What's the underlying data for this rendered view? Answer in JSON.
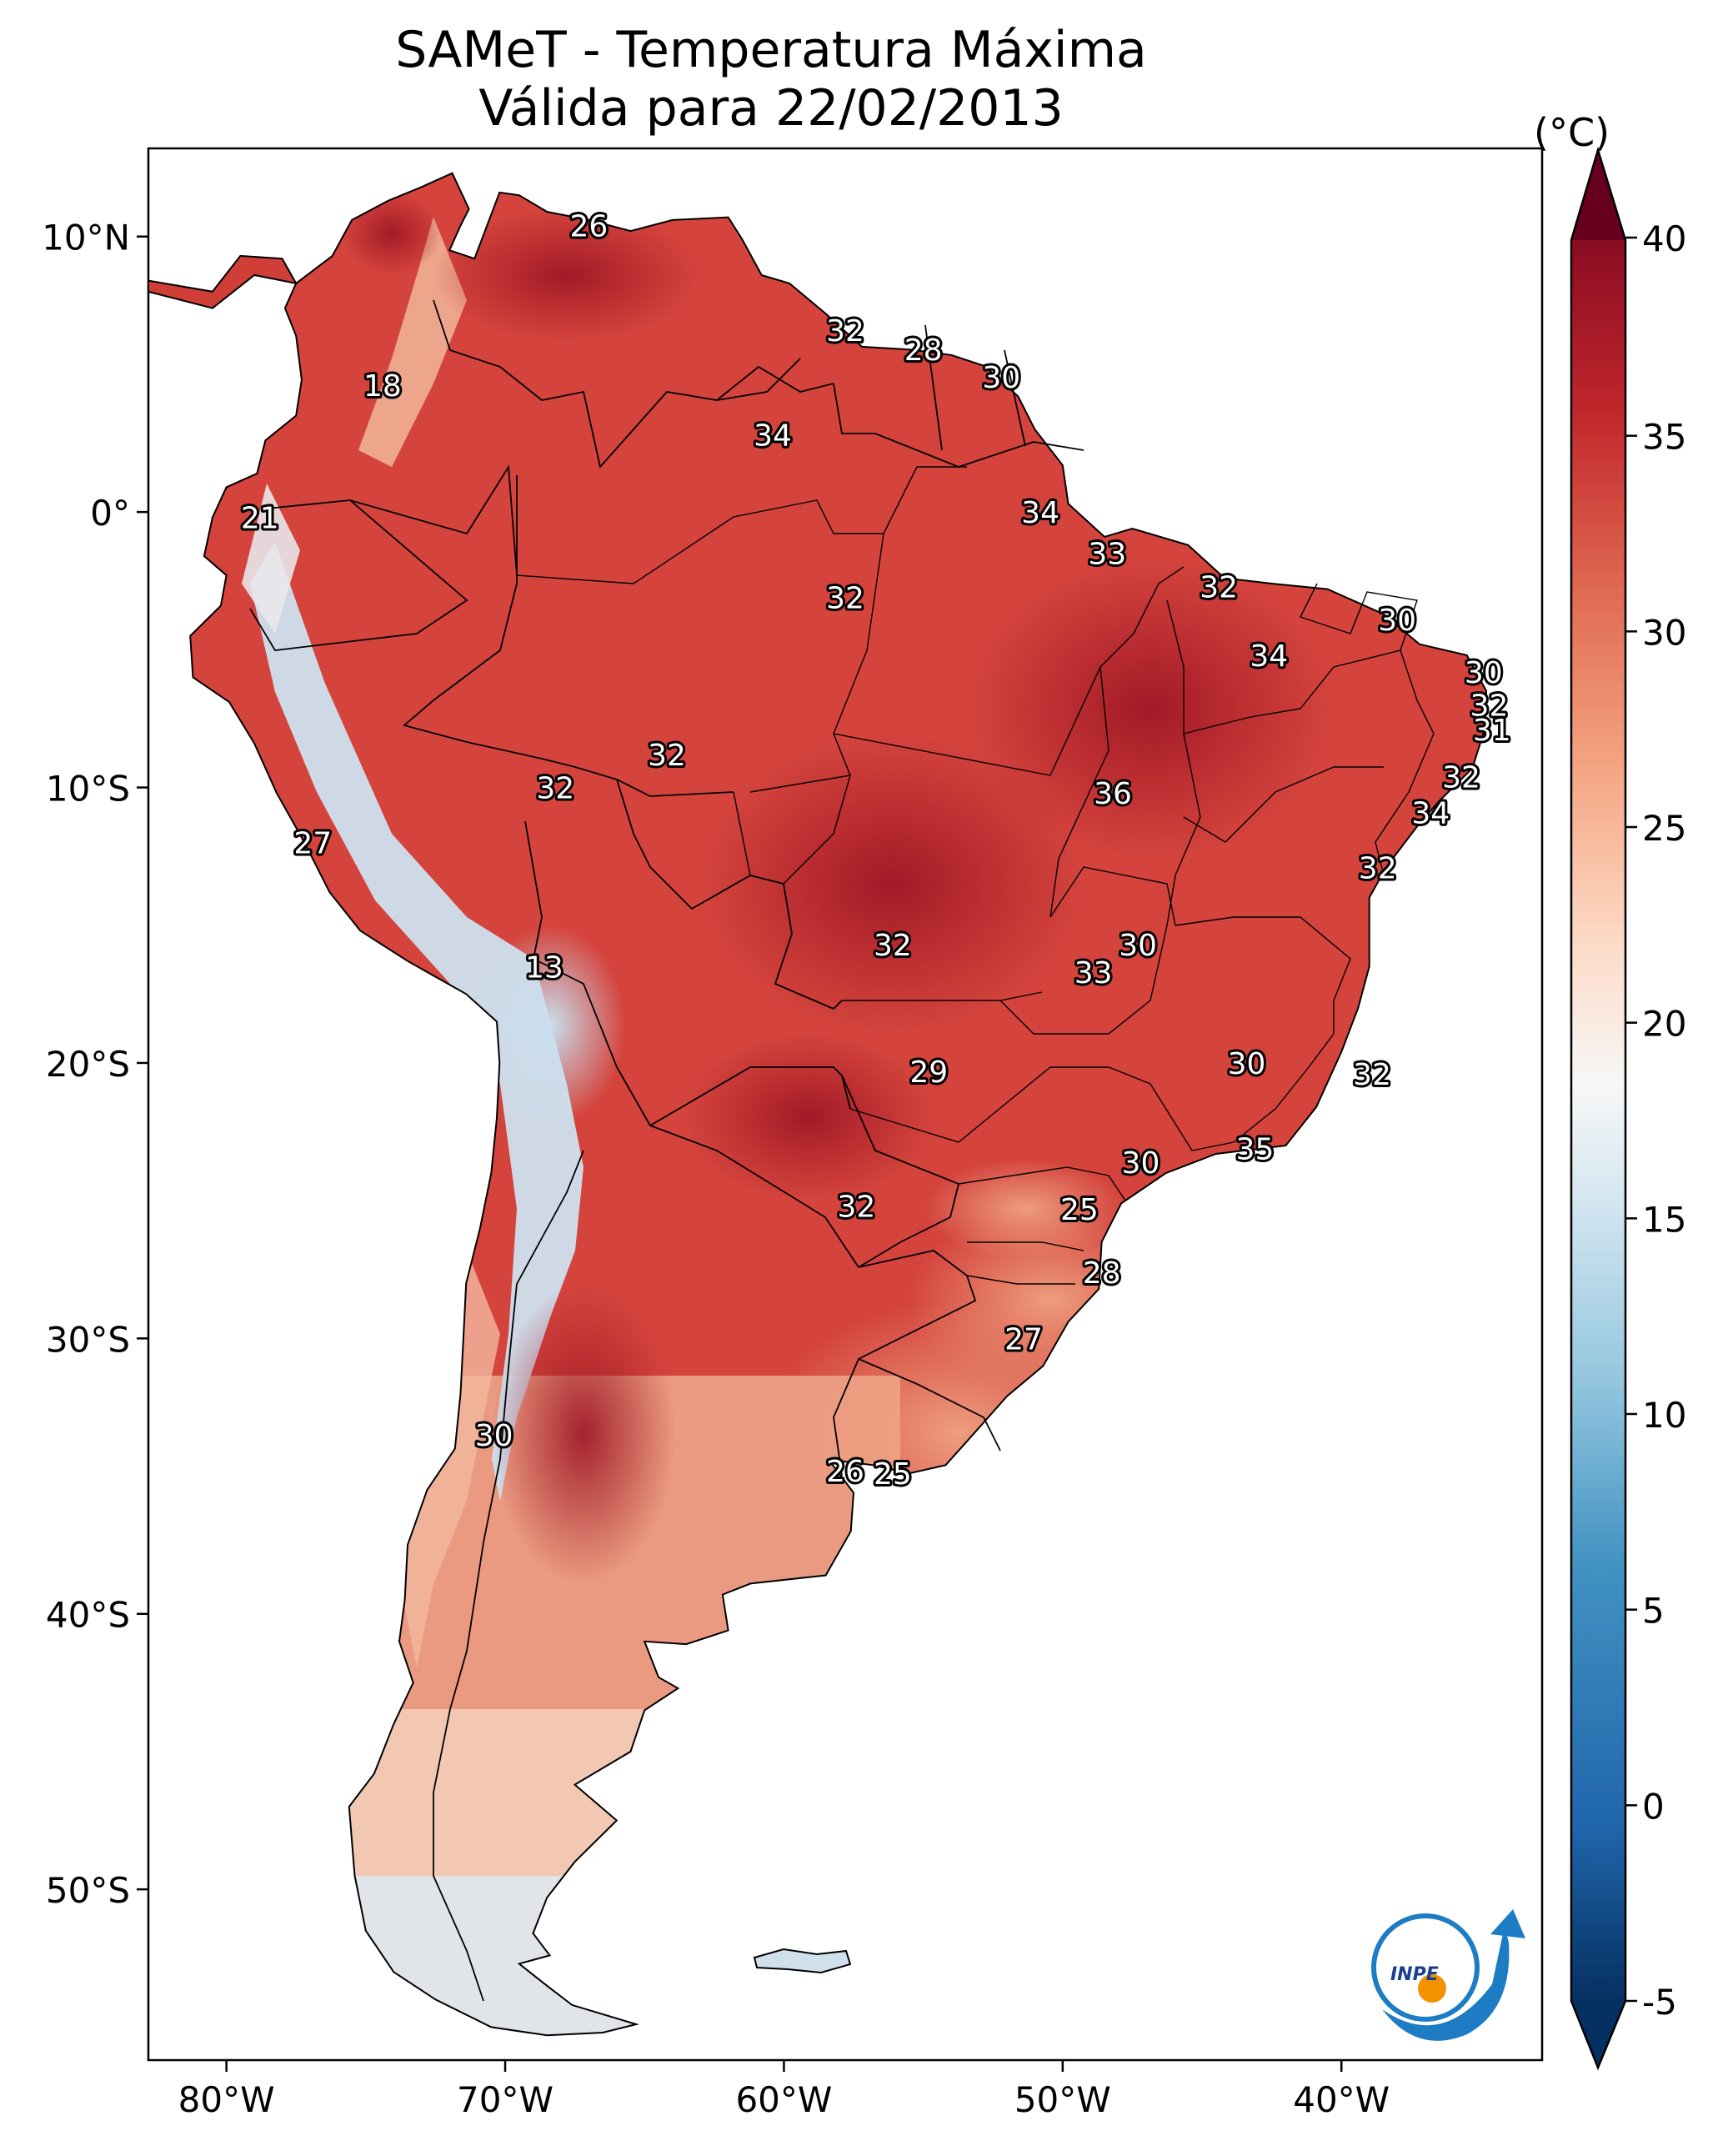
{
  "title_line1": "SAMeT - Temperatura Máxima",
  "title_line2": "Válida para 22/02/2013",
  "colorbar": {
    "unit_label": "(°C)",
    "ticks": [
      "40",
      "35",
      "30",
      "25",
      "20",
      "15",
      "10",
      "5",
      "0",
      "-5"
    ],
    "range": [
      -5,
      40
    ],
    "extend": "both",
    "colormap": "RdBu_r",
    "colors": {
      "min": "#053061",
      "low": "#2166ac",
      "midlow": "#92c5de",
      "mid": "#f7f7f7",
      "midhigh": "#f4a582",
      "high": "#d6604d",
      "max": "#67001f"
    }
  },
  "axes": {
    "lat_ticks": [
      "10°N",
      "0°",
      "10°S",
      "20°S",
      "30°S",
      "40°S",
      "50°S"
    ],
    "lon_ticks": [
      "80°W",
      "70°W",
      "60°W",
      "50°W",
      "40°W"
    ]
  },
  "map_extent": {
    "lon": [
      -82.8,
      -32.8
    ],
    "lat": [
      -56.2,
      13.2
    ]
  },
  "region": "South America",
  "point_labels": [
    {
      "text": "26",
      "lon": -67.0,
      "lat": 10.4
    },
    {
      "text": "32",
      "lon": -57.8,
      "lat": 6.6
    },
    {
      "text": "28",
      "lon": -55.0,
      "lat": 5.9
    },
    {
      "text": "30",
      "lon": -52.2,
      "lat": 4.9
    },
    {
      "text": "18",
      "lon": -74.4,
      "lat": 4.6
    },
    {
      "text": "34",
      "lon": -60.4,
      "lat": 2.8
    },
    {
      "text": "21",
      "lon": -78.8,
      "lat": -0.2
    },
    {
      "text": "34",
      "lon": -50.8,
      "lat": 0.0
    },
    {
      "text": "33",
      "lon": -48.4,
      "lat": -1.5
    },
    {
      "text": "32",
      "lon": -44.4,
      "lat": -2.7
    },
    {
      "text": "32",
      "lon": -57.8,
      "lat": -3.1
    },
    {
      "text": "30",
      "lon": -38.0,
      "lat": -3.9
    },
    {
      "text": "34",
      "lon": -42.6,
      "lat": -5.2
    },
    {
      "text": "30",
      "lon": -34.9,
      "lat": -5.8
    },
    {
      "text": "32",
      "lon": -34.7,
      "lat": -7.0
    },
    {
      "text": "31",
      "lon": -34.6,
      "lat": -7.9
    },
    {
      "text": "32",
      "lon": -64.2,
      "lat": -8.8
    },
    {
      "text": "32",
      "lon": -35.7,
      "lat": -9.6
    },
    {
      "text": "32",
      "lon": -68.2,
      "lat": -10.0
    },
    {
      "text": "36",
      "lon": -48.2,
      "lat": -10.2
    },
    {
      "text": "34",
      "lon": -36.8,
      "lat": -10.9
    },
    {
      "text": "27",
      "lon": -76.9,
      "lat": -12.0
    },
    {
      "text": "32",
      "lon": -38.7,
      "lat": -12.9
    },
    {
      "text": "32",
      "lon": -56.1,
      "lat": -15.7
    },
    {
      "text": "30",
      "lon": -47.3,
      "lat": -15.7
    },
    {
      "text": "33",
      "lon": -48.9,
      "lat": -16.7
    },
    {
      "text": "13",
      "lon": -68.6,
      "lat": -16.5
    },
    {
      "text": "30",
      "lon": -43.4,
      "lat": -20.0
    },
    {
      "text": "29",
      "lon": -54.8,
      "lat": -20.3
    },
    {
      "text": "32",
      "lon": -38.9,
      "lat": -20.4
    },
    {
      "text": "35",
      "lon": -43.1,
      "lat": -23.1
    },
    {
      "text": "30",
      "lon": -47.2,
      "lat": -23.6
    },
    {
      "text": "32",
      "lon": -57.4,
      "lat": -25.2
    },
    {
      "text": "25",
      "lon": -49.4,
      "lat": -25.3
    },
    {
      "text": "28",
      "lon": -48.6,
      "lat": -27.6
    },
    {
      "text": "27",
      "lon": -51.4,
      "lat": -30.0
    },
    {
      "text": "30",
      "lon": -70.4,
      "lat": -33.5
    },
    {
      "text": "26",
      "lon": -57.8,
      "lat": -34.8
    },
    {
      "text": "25",
      "lon": -56.1,
      "lat": -34.9
    }
  ],
  "logo": {
    "text": "INPE"
  }
}
